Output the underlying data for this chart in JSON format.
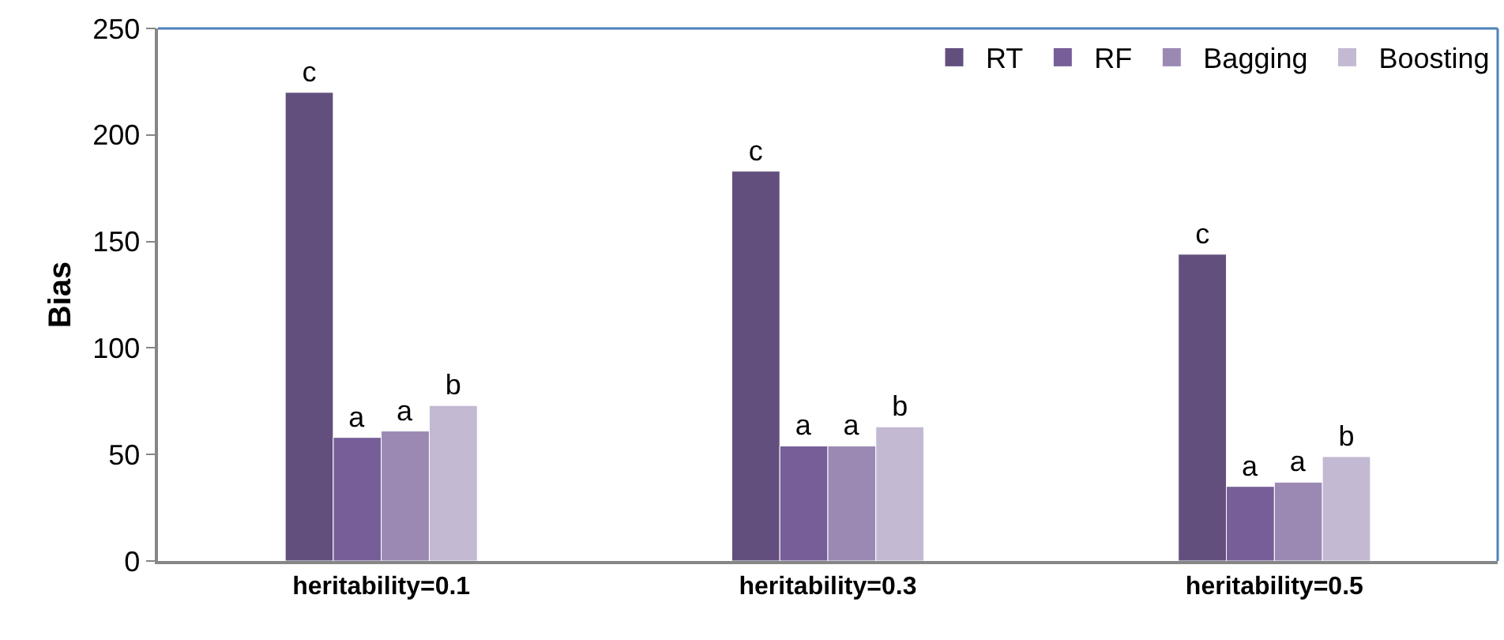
{
  "chart_data": {
    "type": "bar",
    "ylabel": "Bias",
    "categories": [
      "heritability=0.1",
      "heritability=0.3",
      "heritability=0.5"
    ],
    "series": [
      {
        "name": "RT",
        "color": "#634f7d",
        "values": [
          220,
          183,
          144
        ],
        "value_labels": [
          "c",
          "c",
          "c"
        ]
      },
      {
        "name": "RF",
        "color": "#775e98",
        "values": [
          58,
          54,
          35
        ],
        "value_labels": [
          "a",
          "a",
          "a"
        ]
      },
      {
        "name": "Bagging",
        "color": "#9b89b3",
        "values": [
          61,
          54,
          37
        ],
        "value_labels": [
          "a",
          "a",
          "a"
        ]
      },
      {
        "name": "Boosting",
        "color": "#c3b9d2",
        "values": [
          73,
          63,
          49
        ],
        "value_labels": [
          "b",
          "b",
          "b"
        ]
      }
    ],
    "ylim": [
      0,
      250
    ],
    "yticks": [
      0,
      50,
      100,
      150,
      200,
      250
    ],
    "grid": false,
    "legend": "top right"
  }
}
